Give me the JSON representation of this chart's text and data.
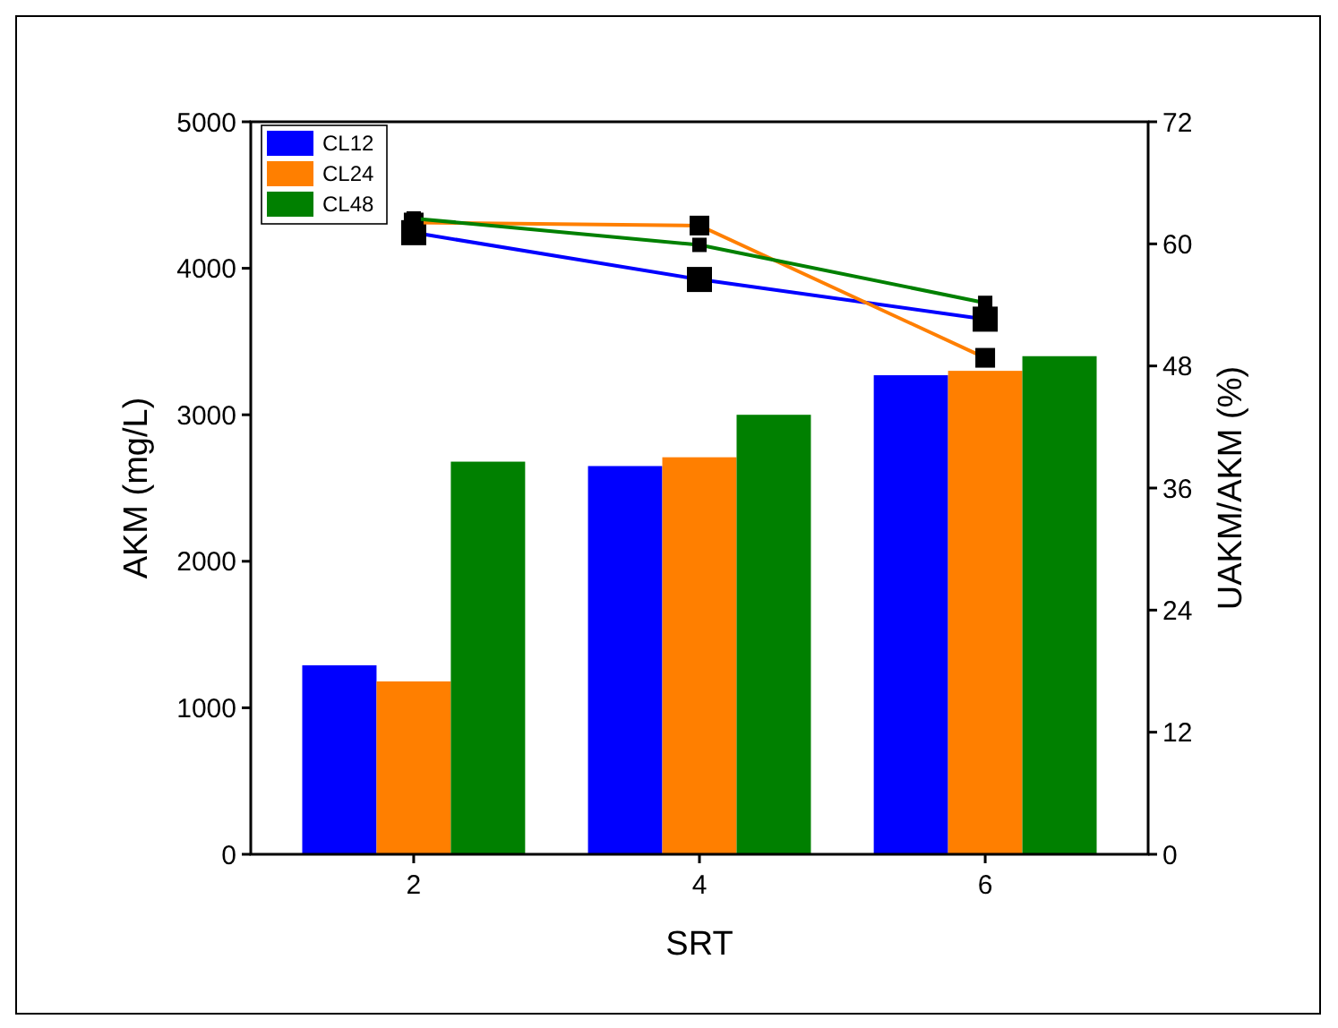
{
  "chart_data": {
    "type": "bar",
    "xlabel": "SRT",
    "ylabel": "AKM (mg/L)",
    "y2label": "UAKM/AKM (%)",
    "categories": [
      "2",
      "4",
      "6"
    ],
    "ylim": [
      0,
      5000
    ],
    "yticks": [
      0,
      1000,
      2000,
      3000,
      4000,
      5000
    ],
    "y2lim": [
      0,
      72
    ],
    "y2ticks": [
      0,
      12,
      24,
      36,
      48,
      60,
      72
    ],
    "legend": "top left",
    "grid": false,
    "series": [
      {
        "name": "CL12",
        "color": "#0000ff",
        "values": [
          1290,
          2650,
          3270
        ]
      },
      {
        "name": "CL24",
        "color": "#ff7f00",
        "values": [
          1180,
          2710,
          3300
        ]
      },
      {
        "name": "CL48",
        "color": "#008000",
        "values": [
          2680,
          3000,
          3400
        ]
      },
      {
        "type": "line",
        "axis": "y2",
        "color": "#0000ff",
        "marker": "square",
        "values": [
          61.1,
          56.5,
          52.6
        ]
      },
      {
        "type": "line",
        "axis": "y2",
        "color": "#ff7f00",
        "marker": "square",
        "values": [
          62.1,
          61.8,
          48.8
        ]
      },
      {
        "type": "line",
        "axis": "y2",
        "color": "#008000",
        "marker": "square",
        "values": [
          62.5,
          59.9,
          54.2
        ]
      }
    ]
  }
}
